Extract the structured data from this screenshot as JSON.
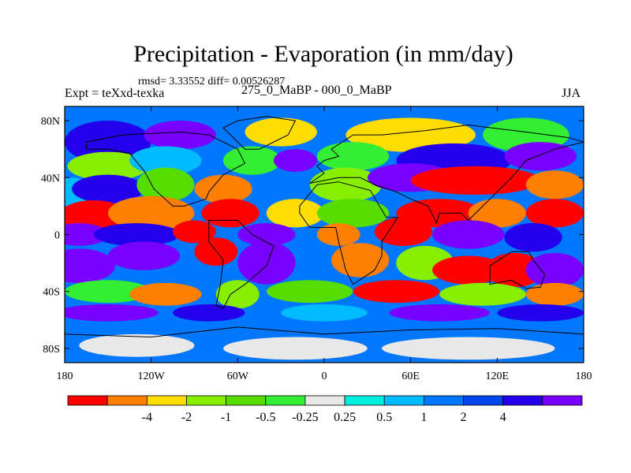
{
  "title": "Precipitation - Evaporation (in mm/day)",
  "stats": "rmsd= 3.33552 diff= 0.00526287",
  "expt": "Expt = teXxd-texka",
  "experiments": "275_0_MaBP - 000_0_MaBP",
  "season": "JJA",
  "map": {
    "lon_range": [
      -180,
      180
    ],
    "lat_range": [
      -90,
      90
    ],
    "lon_ticks": [
      {
        "value": -180,
        "label": "180"
      },
      {
        "value": -120,
        "label": "120W"
      },
      {
        "value": -60,
        "label": "60W"
      },
      {
        "value": 0,
        "label": "0"
      },
      {
        "value": 60,
        "label": "60E"
      },
      {
        "value": 120,
        "label": "120E"
      },
      {
        "value": 180,
        "label": "180"
      }
    ],
    "lat_ticks": [
      {
        "value": 80,
        "label": "80N"
      },
      {
        "value": 40,
        "label": "40N"
      },
      {
        "value": 0,
        "label": "0"
      },
      {
        "value": -40,
        "label": "40S"
      },
      {
        "value": -80,
        "label": "80S"
      }
    ]
  },
  "colorbar": {
    "colors": [
      "#ff0000",
      "#ff8000",
      "#ffdd00",
      "#88ee00",
      "#55dd00",
      "#33ee33",
      "#e8e8e8",
      "#00eedd",
      "#00bbff",
      "#0077ff",
      "#0044ee",
      "#2200ee",
      "#7700ff"
    ],
    "labels": [
      "-4",
      "-2",
      "-1",
      "-0.5",
      "-0.25",
      "0.25",
      "0.5",
      "1",
      "2",
      "4"
    ]
  },
  "chart_data": {
    "type": "heatmap",
    "variable": "Precipitation - Evaporation",
    "units": "mm/day",
    "levels": [
      -4,
      -2,
      -1,
      -0.5,
      -0.25,
      0.25,
      0.5,
      1,
      2,
      4
    ],
    "xrange": [
      -180,
      180
    ],
    "yrange": [
      -90,
      90
    ],
    "xticks": [
      "180",
      "120W",
      "60W",
      "0",
      "60E",
      "120E",
      "180"
    ],
    "yticks": [
      "80N",
      "40N",
      "0",
      "40S",
      "80S"
    ]
  }
}
